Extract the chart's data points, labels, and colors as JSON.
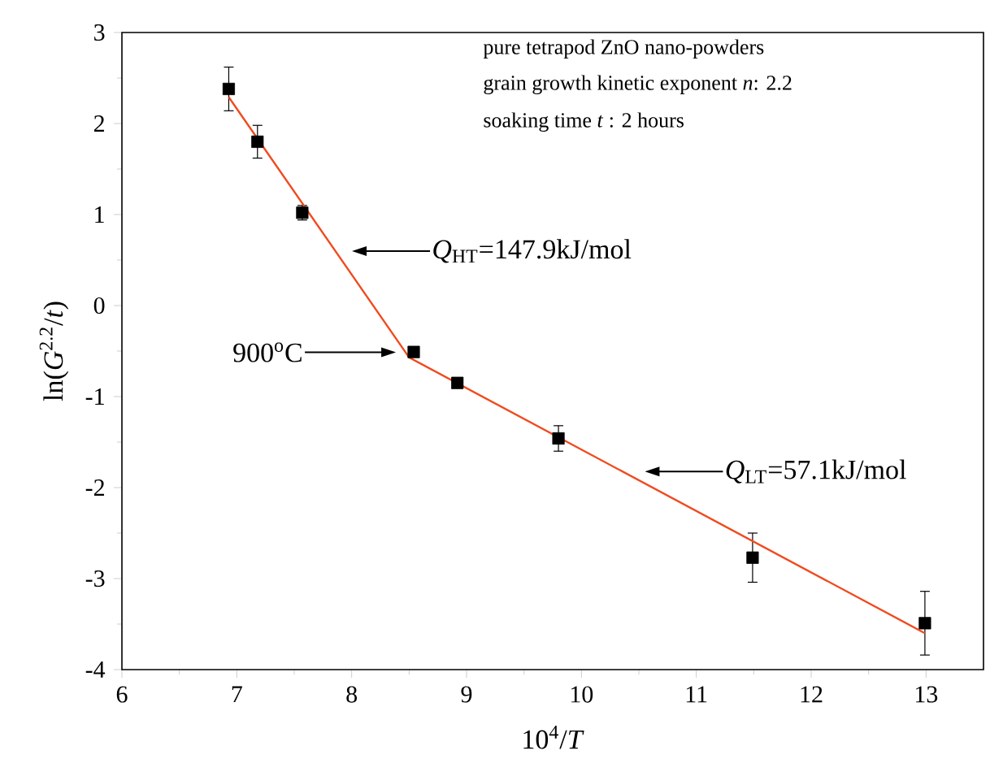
{
  "chart_data": {
    "type": "scatter",
    "xlabel": "10$^{4}$/*T*",
    "ylabel": "ln(*G*$^{2.2}$/*t*)",
    "xlim": [
      6,
      13.5
    ],
    "ylim": [
      -4,
      3
    ],
    "xticks": [
      6,
      7,
      8,
      9,
      10,
      11,
      12,
      13
    ],
    "yticks": [
      -4,
      -3,
      -2,
      -1,
      0,
      1,
      2,
      3
    ],
    "grid": false,
    "marker": "square",
    "series": [
      {
        "color": "#000000",
        "x": [
          6.93,
          7.18,
          7.57,
          8.54,
          8.92,
          9.8,
          11.49,
          12.99
        ],
        "values": [
          2.38,
          1.8,
          1.02,
          -0.51,
          -0.85,
          -1.46,
          -2.77,
          -3.49
        ],
        "errors": [
          0.24,
          0.18,
          0.08,
          null,
          null,
          0.14,
          0.27,
          0.35
        ]
      },
      {
        "type": "line",
        "color": "#f04a1e",
        "marker": "none",
        "line_style": "solid",
        "x": [
          6.93,
          8.5,
          12.99
        ],
        "values": [
          2.29,
          -0.57,
          -3.6
        ]
      }
    ],
    "annotations": [
      "pure tetrapod ZnO nano-powders",
      "grain growth kinetic exponent *n*: 2.2",
      "soaking time *t* : 2 hours",
      "*Q*$_{HT}$=147.9kJ/mol",
      "900$^{o}$C",
      "*Q*$_{LT}$=57.1kJ/mol"
    ]
  }
}
